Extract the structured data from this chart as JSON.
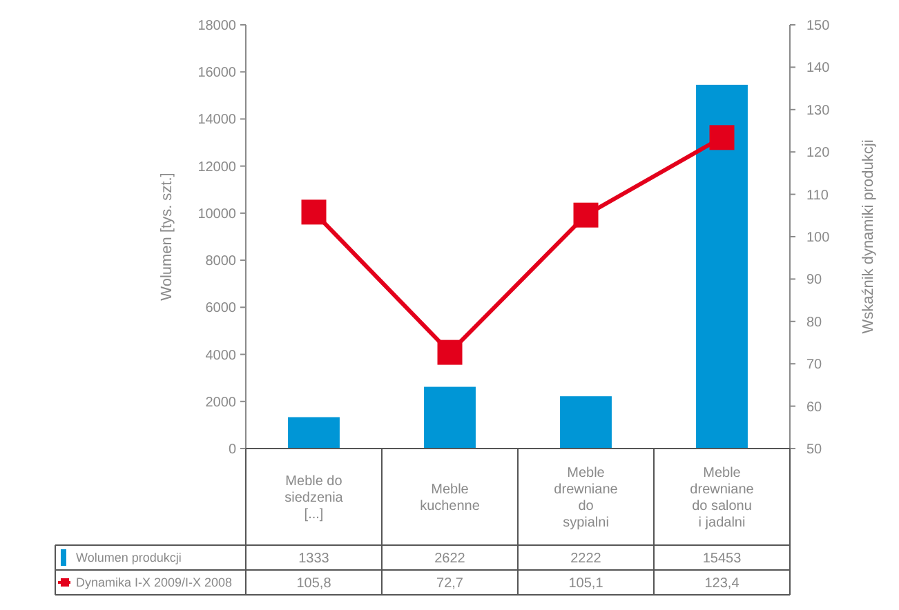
{
  "chart_data": {
    "type": "bar",
    "ylabel": "Wolumen [tys. szt.]",
    "y2label": "Wskaźnik dynamiki produkcji",
    "categories": [
      "Meble do siedzenia [...]",
      "Meble kuchenne",
      "Meble drewniane do sypialni",
      "Meble drewniane do salonu i jadalni"
    ],
    "series": [
      {
        "name": "Wolumen produkcji",
        "color": "#0096d6",
        "values": [
          1333,
          2622,
          2222,
          15453
        ],
        "value_labels": [
          "1333",
          "2622",
          "2222",
          "15453"
        ]
      },
      {
        "name": "Dynamika I-X 2009/I-X 2008",
        "type": "line",
        "axis": "y2",
        "color": "#e3001b",
        "marker": "square",
        "values": [
          105.8,
          72.7,
          105.1,
          123.4
        ],
        "value_labels": [
          "105,8",
          "72,7",
          "105,1",
          "123,4"
        ]
      }
    ],
    "ylim": [
      0,
      18000
    ],
    "yticks": [
      0,
      2000,
      4000,
      6000,
      8000,
      10000,
      12000,
      14000,
      16000,
      18000
    ],
    "y2lim": [
      50,
      150
    ],
    "y2ticks": [
      50,
      60,
      70,
      80,
      90,
      100,
      110,
      120,
      130,
      140,
      150
    ],
    "grid": false,
    "legend": "bottom left"
  }
}
